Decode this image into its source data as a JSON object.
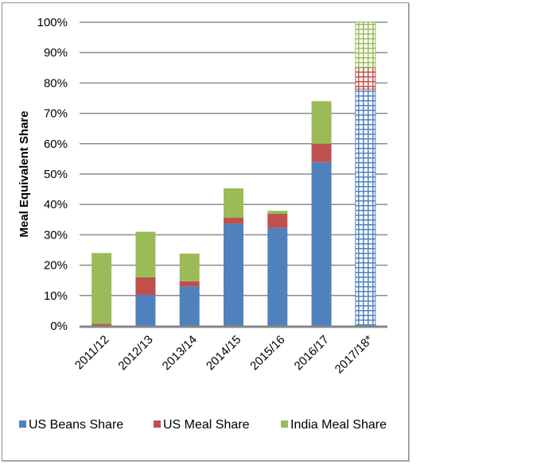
{
  "chart_data": {
    "type": "bar",
    "stacked": true,
    "title": "",
    "xlabel": "",
    "ylabel": "Meal Equivalent Share",
    "ylim": [
      0,
      100
    ],
    "y_ticks": [
      "0%",
      "10%",
      "20%",
      "30%",
      "40%",
      "50%",
      "60%",
      "70%",
      "80%",
      "90%",
      "100%"
    ],
    "grid": true,
    "legend_position": "bottom",
    "categories": [
      "2011/12",
      "2012/13",
      "2013/14",
      "2014/15",
      "2015/16",
      "2016/17",
      "2017/18*"
    ],
    "patterned_categories": [
      "2017/18*"
    ],
    "series": [
      {
        "name": "US Beans Share",
        "color": "#4f81bd",
        "values": [
          0,
          10.2,
          13,
          33.6,
          32.3,
          54,
          78
        ]
      },
      {
        "name": "US Meal Share",
        "color": "#c0504d",
        "values": [
          0.7,
          5.8,
          1.7,
          2,
          4.6,
          6,
          7
        ]
      },
      {
        "name": "India Meal Share",
        "color": "#9bbb59",
        "values": [
          23.3,
          15,
          9.1,
          9.7,
          1,
          14,
          15
        ]
      }
    ]
  }
}
